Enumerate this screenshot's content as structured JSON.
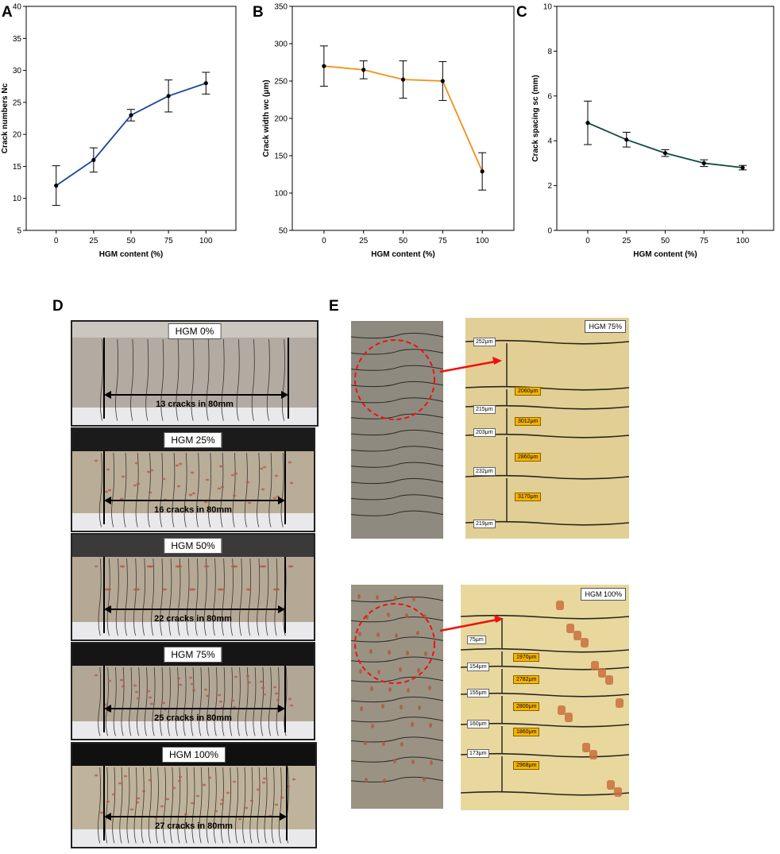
{
  "panels": {
    "A": "A",
    "B": "B",
    "C": "C",
    "D": "D",
    "E": "E"
  },
  "colors": {
    "A": "#1446a0",
    "B": "#f39019",
    "C": "#0b4b43"
  },
  "chart_data": [
    {
      "type": "line",
      "x": [
        0,
        25,
        50,
        75,
        100
      ],
      "y": [
        12,
        16,
        23,
        26,
        28
      ],
      "err": [
        3.1,
        1.9,
        0.9,
        2.5,
        1.7
      ],
      "xlabel": "HGM content (%)",
      "ylabel": "Crack numbers Nc",
      "ylim": [
        5,
        40
      ],
      "yticks": [
        "5",
        "10",
        "15",
        "20",
        "25",
        "30",
        "35",
        "40"
      ],
      "xticks": [
        "0",
        "25",
        "50",
        "75",
        "100"
      ]
    },
    {
      "type": "line",
      "x": [
        0,
        25,
        50,
        75,
        100
      ],
      "y": [
        270,
        265,
        252,
        250,
        129
      ],
      "err": [
        27,
        12,
        25,
        26,
        25
      ],
      "xlabel": "HGM content (%)",
      "ylabel": "Crack width wc (μm)",
      "ylim": [
        50,
        350
      ],
      "yticks": [
        "50",
        "100",
        "150",
        "200",
        "250",
        "300",
        "350"
      ],
      "xticks": [
        "0",
        "25",
        "50",
        "75",
        "100"
      ]
    },
    {
      "type": "line",
      "x": [
        0,
        25,
        50,
        75,
        100
      ],
      "y": [
        4.8,
        4.05,
        3.45,
        3.0,
        2.8
      ],
      "err": [
        0.97,
        0.33,
        0.15,
        0.15,
        0.1
      ],
      "xlabel": "HGM content (%)",
      "ylabel": "Crack spacing sc (mm)",
      "ylim": [
        0,
        10
      ],
      "yticks": [
        "0",
        "2",
        "4",
        "6",
        "8",
        "10"
      ],
      "xticks": [
        "0",
        "25",
        "50",
        "75",
        "100"
      ]
    }
  ],
  "specimens": [
    {
      "label": "HGM 0%",
      "caption": "13 cracks in 80mm",
      "cracks": 13
    },
    {
      "label": "HGM 25%",
      "caption": "16 cracks in 80mm",
      "cracks": 16
    },
    {
      "label": "HGM 50%",
      "caption": "22 cracks in 80mm",
      "cracks": 22
    },
    {
      "label": "HGM 75%",
      "caption": "25 cracks in 80mm",
      "cracks": 25
    },
    {
      "label": "HGM 100%",
      "caption": "27 cracks in 80mm",
      "cracks": 27
    }
  ],
  "micro75": {
    "tag": "HGM 75%",
    "widths": [
      "252μm",
      "215μm",
      "203μm",
      "232μm",
      "219μm"
    ],
    "spacings": [
      "2060μm",
      "3012μm",
      "2860μm",
      "3170μm"
    ]
  },
  "micro100": {
    "tag": "HGM 100%",
    "widths": [
      "75μm",
      "154μm",
      "155μm",
      "160μm",
      "173μm"
    ],
    "spacings": [
      "1970μm",
      "2782μm",
      "2800μm",
      "1860μm",
      "2968μm"
    ]
  }
}
